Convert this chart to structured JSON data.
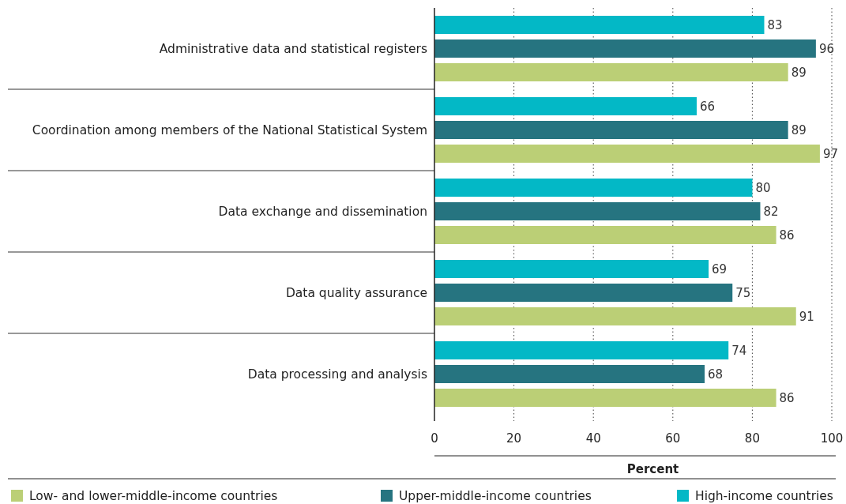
{
  "chart_data": {
    "type": "bar",
    "orientation": "horizontal",
    "categories": [
      "Administrative data and statistical registers",
      "Coordination among members of the National Statistical System",
      "Data exchange and dissemination",
      "Data quality assurance",
      "Data processing and analysis"
    ],
    "series": [
      {
        "name": "Low- and lower-middle-income countries",
        "color": "#bbcf76",
        "values": [
          89,
          97,
          86,
          91,
          86
        ]
      },
      {
        "name": "Upper-middle-income countries",
        "color": "#267480",
        "values": [
          96,
          89,
          82,
          75,
          68
        ]
      },
      {
        "name": "High-income countries",
        "color": "#03b8c6",
        "values": [
          83,
          66,
          80,
          69,
          74
        ]
      }
    ],
    "xlabel": "Percent",
    "xlim": [
      0,
      100
    ],
    "xticks": [
      0,
      20,
      40,
      60,
      80,
      100
    ],
    "grid": "x",
    "legend": "bottom",
    "data_labels": true
  }
}
